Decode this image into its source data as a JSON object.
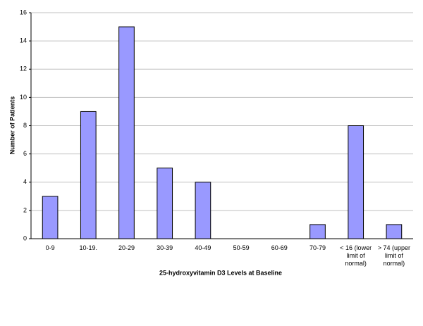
{
  "chart_data": {
    "type": "bar",
    "categories": [
      "0-9",
      "10-19.",
      "20-29",
      "30-39",
      "40-49",
      "50-59",
      "60-69",
      "70-79",
      "< 16 (lower limit of normal)",
      "> 74 (upper limit of normal)"
    ],
    "values": [
      3,
      9,
      15,
      5,
      4,
      0,
      0,
      1,
      8,
      1
    ],
    "color": "#9999ff",
    "xlabel": "25-hydroxyvitamin D3 Levels at Baseline",
    "ylabel": "Number of Patients",
    "ylim": [
      0,
      16
    ],
    "yticks": [
      0,
      2,
      4,
      6,
      8,
      10,
      12,
      14,
      16
    ],
    "grid": true
  }
}
